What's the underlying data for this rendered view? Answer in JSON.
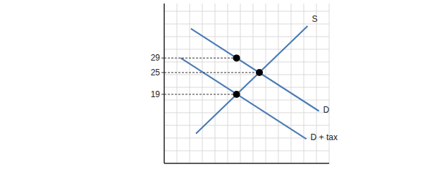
{
  "chart_data": {
    "type": "line",
    "xlim": [
      0,
      13
    ],
    "ylim": [
      0,
      44
    ],
    "yticks": [
      19,
      25,
      29
    ],
    "tick_labels": "y",
    "grid": true,
    "series": [
      {
        "name": "S",
        "color": "#4a7bb5",
        "x": [
          2.5,
          11.3
        ],
        "values": [
          8.2,
          37.8
        ]
      },
      {
        "name": "D",
        "color": "#4a7bb5",
        "x": [
          2.1,
          12.2
        ],
        "values": [
          37.1,
          14.4
        ]
      },
      {
        "name": "D + tax",
        "color": "#4a7bb5",
        "x": [
          1.3,
          11.2
        ],
        "values": [
          29,
          6.7
        ]
      },
      {
        "type": "scatter",
        "marker": "circle",
        "color": "#000000",
        "x": [
          5.7,
          7.5,
          5.7
        ],
        "values": [
          29,
          25,
          19
        ]
      }
    ]
  }
}
